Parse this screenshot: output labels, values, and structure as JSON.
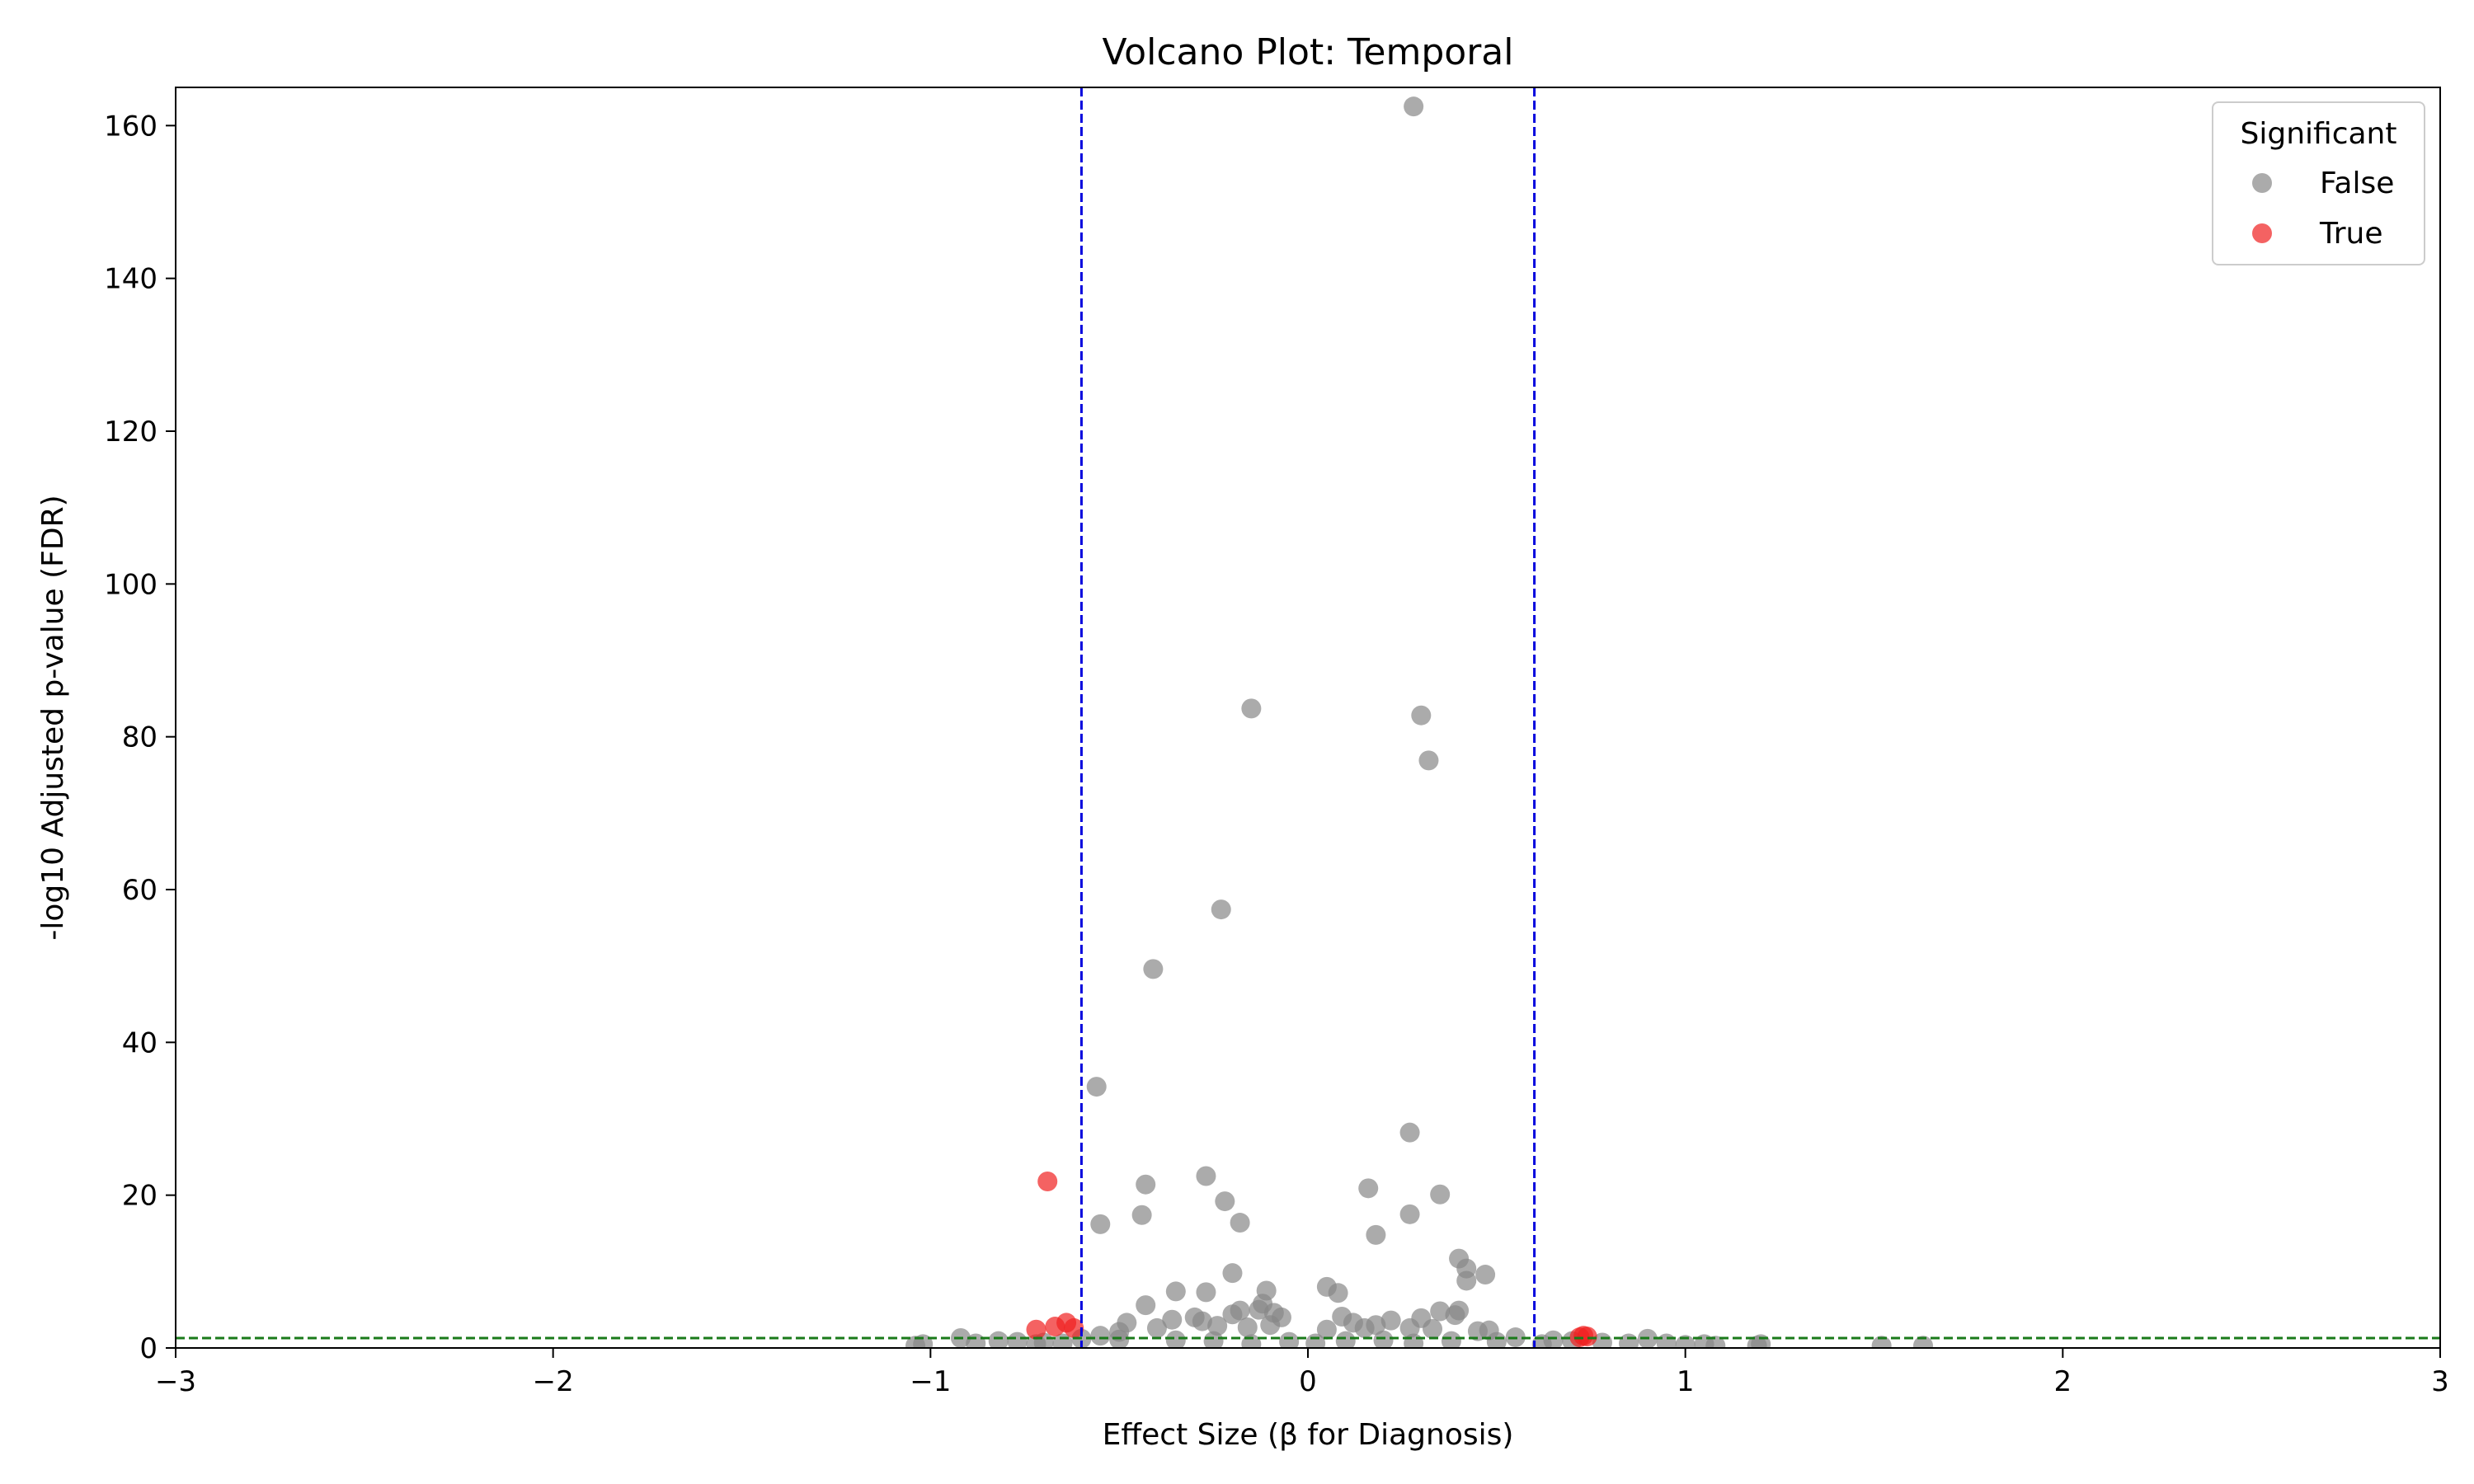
{
  "chart_data": {
    "type": "scatter",
    "title": "Volcano Plot: Temporal",
    "xlabel": "Effect Size (β for Diagnosis)",
    "ylabel": "-log10 Adjusted p-value (FDR)",
    "xlim": [
      -3,
      3
    ],
    "ylim": [
      0,
      165
    ],
    "xticks": [
      -3,
      -2,
      -1,
      0,
      1,
      2,
      3
    ],
    "xtick_labels": [
      "−3",
      "−2",
      "−1",
      "0",
      "1",
      "2",
      "3"
    ],
    "yticks": [
      0,
      20,
      40,
      60,
      80,
      100,
      120,
      140,
      160
    ],
    "ytick_labels": [
      "0",
      "20",
      "40",
      "60",
      "80",
      "100",
      "120",
      "140",
      "160"
    ],
    "grid": false,
    "legend": {
      "title": "Significant",
      "placement": "top-right"
    },
    "thresholds": {
      "effect_size": [
        -0.6,
        0.6
      ],
      "neg_log10_fdr": 1.3
    },
    "colors": {
      "not_significant": "#888888",
      "significant": "#f02020",
      "effect_threshold_line": "#0000dd",
      "fdr_threshold_line": "#1a7a1a"
    },
    "series": [
      {
        "name": "False",
        "points": [
          [
            0.28,
            162.5
          ],
          [
            -0.15,
            83.7
          ],
          [
            0.3,
            82.8
          ],
          [
            0.32,
            76.9
          ],
          [
            -0.23,
            57.4
          ],
          [
            -0.41,
            49.6
          ],
          [
            -0.56,
            34.2
          ],
          [
            0.27,
            28.2
          ],
          [
            -0.27,
            22.5
          ],
          [
            -0.43,
            21.4
          ],
          [
            0.16,
            20.9
          ],
          [
            0.35,
            20.1
          ],
          [
            -0.22,
            19.2
          ],
          [
            -0.44,
            17.4
          ],
          [
            0.27,
            17.5
          ],
          [
            -0.55,
            16.2
          ],
          [
            -0.18,
            16.4
          ],
          [
            0.18,
            14.8
          ],
          [
            0.4,
            11.7
          ],
          [
            0.42,
            10.4
          ],
          [
            -0.2,
            9.8
          ],
          [
            0.47,
            9.6
          ],
          [
            0.42,
            8.8
          ],
          [
            0.05,
            8.0
          ],
          [
            -0.35,
            7.4
          ],
          [
            -0.27,
            7.3
          ],
          [
            -0.11,
            7.5
          ],
          [
            0.08,
            7.2
          ],
          [
            -0.12,
            5.8
          ],
          [
            -0.43,
            5.6
          ],
          [
            -0.13,
            5.0
          ],
          [
            -0.09,
            4.6
          ],
          [
            0.35,
            4.8
          ],
          [
            0.4,
            4.9
          ],
          [
            0.39,
            4.3
          ],
          [
            -0.18,
            4.9
          ],
          [
            -0.2,
            4.4
          ],
          [
            -0.07,
            4.0
          ],
          [
            0.09,
            4.1
          ],
          [
            -0.3,
            4.0
          ],
          [
            -0.36,
            3.7
          ],
          [
            -0.48,
            3.3
          ],
          [
            -0.28,
            3.5
          ],
          [
            0.12,
            3.3
          ],
          [
            0.18,
            3.0
          ],
          [
            0.22,
            3.6
          ],
          [
            0.3,
            3.9
          ],
          [
            -0.24,
            2.9
          ],
          [
            -0.1,
            3.0
          ],
          [
            0.05,
            2.4
          ],
          [
            -0.5,
            2.1
          ],
          [
            0.45,
            2.2
          ],
          [
            0.48,
            2.3
          ],
          [
            -0.4,
            2.6
          ],
          [
            0.27,
            2.6
          ],
          [
            -0.16,
            2.7
          ],
          [
            0.15,
            2.6
          ],
          [
            0.33,
            2.5
          ],
          [
            -0.55,
            1.6
          ],
          [
            0.55,
            1.4
          ],
          [
            -0.6,
            1.2
          ],
          [
            -0.92,
            1.3
          ],
          [
            -0.82,
            0.9
          ],
          [
            -0.77,
            0.8
          ],
          [
            -0.7,
            0.7
          ],
          [
            -0.65,
            0.6
          ],
          [
            -0.5,
            1.1
          ],
          [
            -0.35,
            1.0
          ],
          [
            -0.25,
            0.9
          ],
          [
            -0.05,
            0.8
          ],
          [
            0.1,
            0.9
          ],
          [
            0.2,
            1.0
          ],
          [
            0.38,
            0.9
          ],
          [
            0.5,
            0.8
          ],
          [
            0.65,
            1.0
          ],
          [
            0.7,
            0.9
          ],
          [
            0.78,
            0.7
          ],
          [
            0.85,
            0.6
          ],
          [
            0.9,
            1.2
          ],
          [
            0.95,
            0.6
          ],
          [
            1.0,
            0.4
          ],
          [
            1.05,
            0.5
          ],
          [
            1.08,
            0.3
          ],
          [
            1.19,
            0.3
          ],
          [
            1.2,
            0.5
          ],
          [
            -1.04,
            0.3
          ],
          [
            -1.02,
            0.5
          ],
          [
            1.52,
            0.3
          ],
          [
            1.63,
            0.3
          ],
          [
            0.62,
            0.5
          ],
          [
            -0.88,
            0.6
          ],
          [
            -0.72,
            0.5
          ],
          [
            0.02,
            0.6
          ],
          [
            -0.15,
            0.5
          ],
          [
            0.28,
            0.6
          ]
        ]
      },
      {
        "name": "True",
        "points": [
          [
            -0.69,
            21.8
          ],
          [
            -0.64,
            3.3
          ],
          [
            -0.67,
            2.8
          ],
          [
            -0.72,
            2.4
          ],
          [
            -0.62,
            2.6
          ],
          [
            0.73,
            1.6
          ],
          [
            0.74,
            1.5
          ],
          [
            0.72,
            1.4
          ]
        ]
      }
    ]
  }
}
